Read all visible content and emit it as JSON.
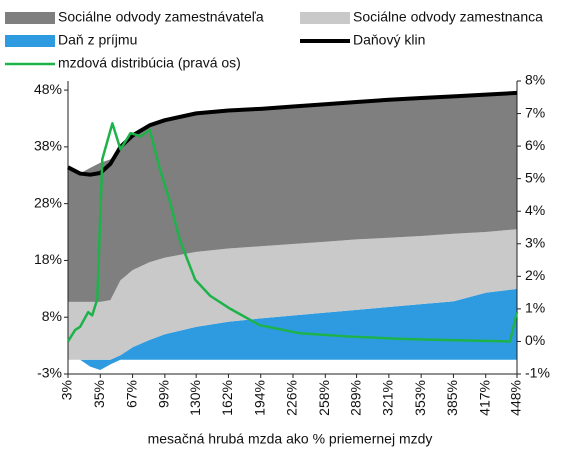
{
  "chart_data": {
    "type": "area-line",
    "xlabel": "mesačná hrubá mzda ako % priemernej mzdy",
    "xlim": [
      3,
      448
    ],
    "xticks": [
      {
        "value": 3,
        "label": "3%"
      },
      {
        "value": 35,
        "label": "35%"
      },
      {
        "value": 67,
        "label": "67%"
      },
      {
        "value": 99,
        "label": "99%"
      },
      {
        "value": 130,
        "label": "130%"
      },
      {
        "value": 162,
        "label": "162%"
      },
      {
        "value": 194,
        "label": "194%"
      },
      {
        "value": 226,
        "label": "226%"
      },
      {
        "value": 258,
        "label": "258%"
      },
      {
        "value": 289,
        "label": "289%"
      },
      {
        "value": 321,
        "label": "321%"
      },
      {
        "value": 353,
        "label": "353%"
      },
      {
        "value": 385,
        "label": "385%"
      },
      {
        "value": 417,
        "label": "417%"
      },
      {
        "value": 448,
        "label": "448%"
      }
    ],
    "ylim": [
      -2.5,
      49.1
    ],
    "yticks": [
      {
        "value": -2.5,
        "label": "-3%"
      },
      {
        "value": 7.5,
        "label": "8%"
      },
      {
        "value": 17.5,
        "label": "18%"
      },
      {
        "value": 27.5,
        "label": "28%"
      },
      {
        "value": 37.5,
        "label": "38%"
      },
      {
        "value": 47.5,
        "label": "48%"
      }
    ],
    "y2lim": [
      -1,
      8
    ],
    "y2ticks": [
      {
        "value": -1,
        "label": "-1%"
      },
      {
        "value": 0,
        "label": "0%"
      },
      {
        "value": 1,
        "label": "1%"
      },
      {
        "value": 2,
        "label": "2%"
      },
      {
        "value": 3,
        "label": "3%"
      },
      {
        "value": 4,
        "label": "4%"
      },
      {
        "value": 5,
        "label": "5%"
      },
      {
        "value": 6,
        "label": "6%"
      },
      {
        "value": 7,
        "label": "7%"
      },
      {
        "value": 8,
        "label": "8%"
      }
    ],
    "grid": false,
    "series": [
      {
        "name": "Sociálne odvody zamestnávateľa",
        "color": "#7f7f7f",
        "kind": "area",
        "x": [
          3,
          15,
          25,
          35,
          45,
          55,
          67,
          84,
          99,
          130,
          162,
          194,
          226,
          258,
          289,
          321,
          353,
          385,
          417,
          448
        ],
        "values": [
          23.7,
          22.6,
          23.6,
          24.5,
          24.8,
          23.5,
          23.7,
          24.1,
          24.2,
          24.4,
          24.3,
          24.2,
          24.2,
          24.2,
          24.2,
          24.3,
          24.3,
          24.2,
          24.2,
          24.0
        ]
      },
      {
        "name": "Sociálne odvody zamestnanca",
        "color": "#c9c9c9",
        "kind": "area",
        "x": [
          3,
          15,
          25,
          35,
          45,
          55,
          67,
          84,
          99,
          130,
          162,
          194,
          226,
          258,
          289,
          321,
          353,
          385,
          417,
          448
        ],
        "values": [
          10.2,
          10.2,
          10.2,
          10.2,
          10.5,
          13.2,
          13.6,
          13.7,
          13.5,
          13.2,
          12.9,
          12.7,
          12.6,
          12.5,
          12.4,
          12.2,
          12.0,
          11.9,
          10.7,
          10.5
        ]
      },
      {
        "name": "Daň z príjmu",
        "color": "#2e9ae0",
        "kind": "area",
        "x": [
          3,
          15,
          25,
          35,
          45,
          55,
          67,
          84,
          99,
          130,
          162,
          194,
          226,
          258,
          289,
          321,
          353,
          385,
          417,
          448
        ],
        "values": [
          0,
          0,
          -1.2,
          -1.8,
          -0.8,
          0.8,
          2.2,
          3.5,
          4.5,
          5.8,
          6.7,
          7.3,
          7.8,
          8.3,
          8.8,
          9.3,
          9.8,
          10.3,
          11.8,
          12.5
        ]
      },
      {
        "name": "Daňový klin",
        "color": "#000000",
        "kind": "line",
        "width": 4,
        "x": [
          3,
          15,
          25,
          35,
          45,
          55,
          67,
          84,
          99,
          130,
          162,
          194,
          226,
          258,
          289,
          321,
          353,
          385,
          417,
          448
        ],
        "values": [
          33.9,
          32.8,
          32.6,
          32.9,
          34.5,
          37.5,
          39.5,
          41.3,
          42.2,
          43.4,
          43.9,
          44.2,
          44.6,
          45.0,
          45.4,
          45.8,
          46.1,
          46.4,
          46.7,
          47.0
        ]
      },
      {
        "name": "mzdová distribúcia (pravá os)",
        "color": "#1db34a",
        "kind": "line",
        "width": 2.5,
        "axis": "y2",
        "x": [
          3,
          10,
          15,
          23,
          27,
          32,
          37,
          47,
          55,
          65,
          75,
          84,
          94,
          104,
          114,
          129,
          144,
          164,
          193,
          233,
          282,
          332,
          382,
          441,
          448
        ],
        "values": [
          0,
          0.35,
          0.45,
          0.9,
          0.8,
          1.3,
          5.6,
          6.7,
          5.9,
          6.4,
          6.3,
          6.5,
          5.3,
          4.3,
          3.1,
          1.9,
          1.4,
          1.0,
          0.5,
          0.25,
          0.15,
          0.08,
          0.04,
          0,
          0.9
        ]
      }
    ]
  }
}
